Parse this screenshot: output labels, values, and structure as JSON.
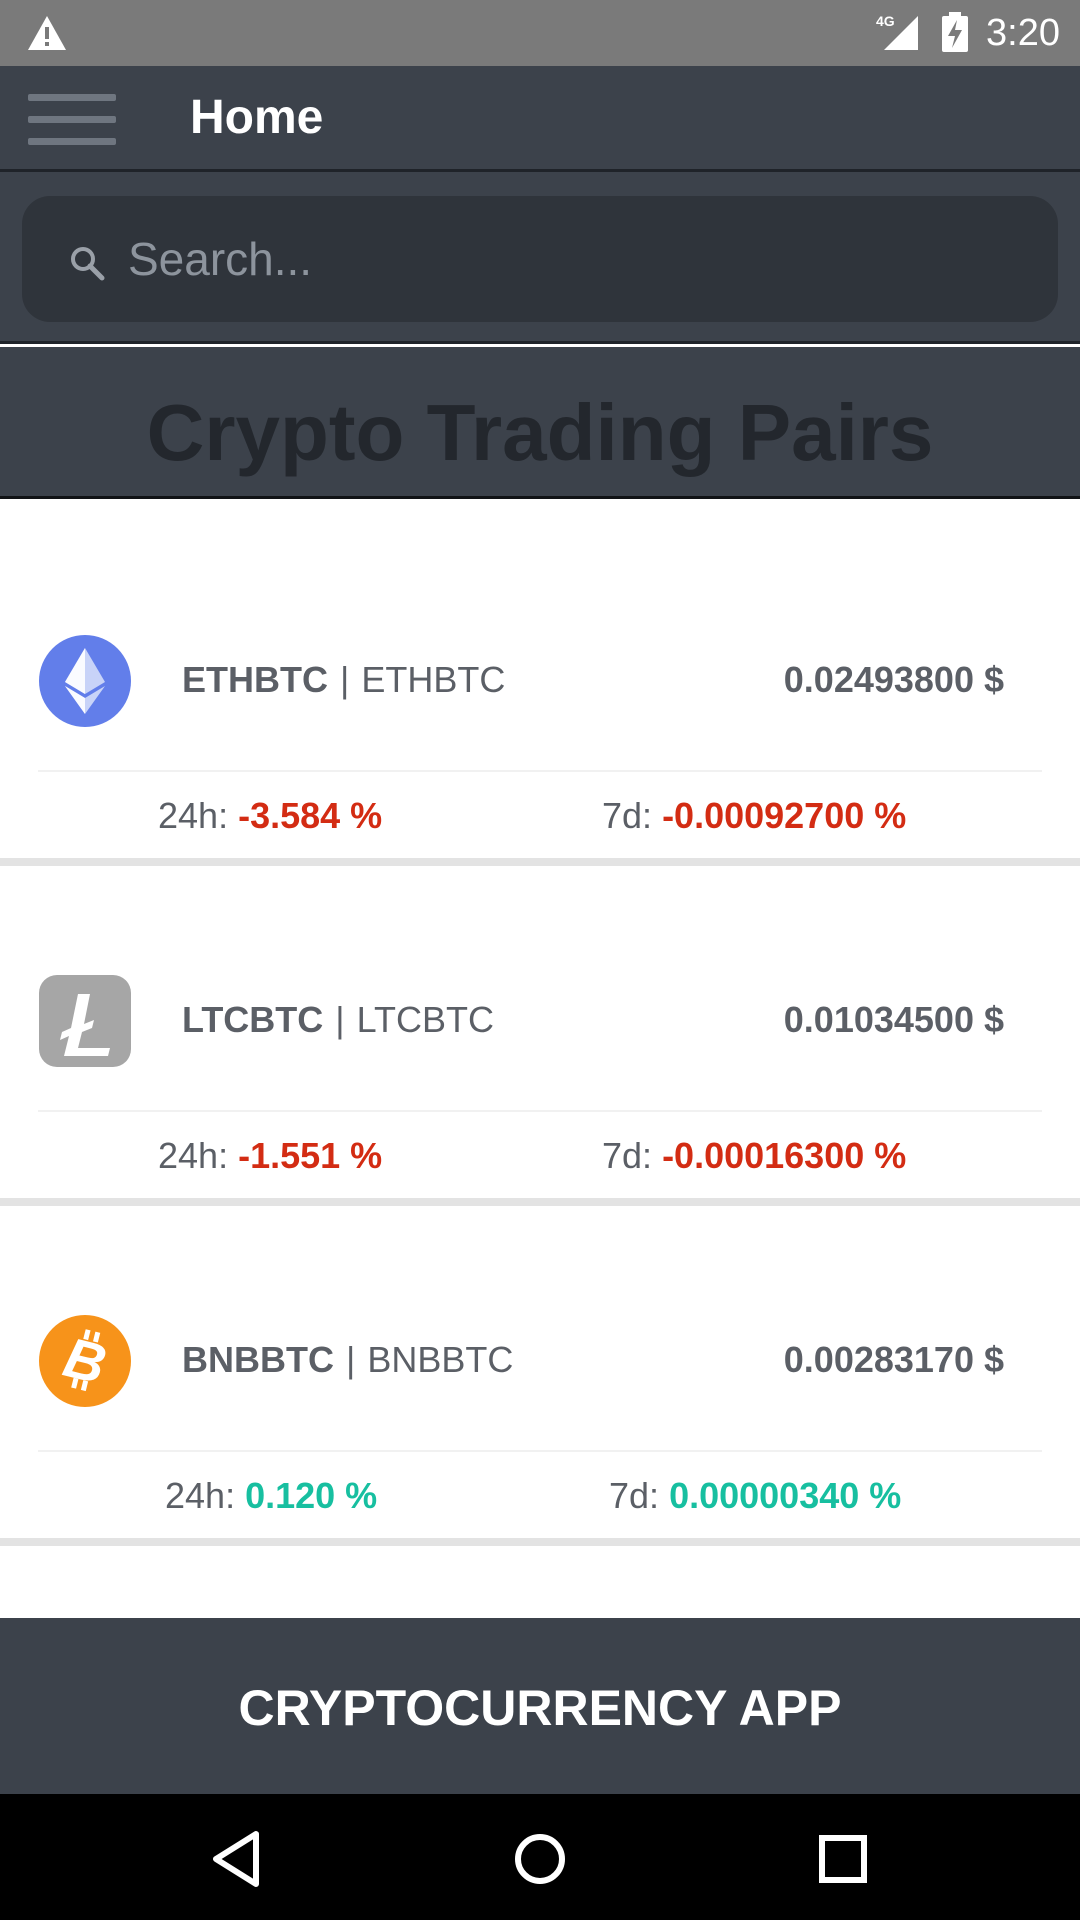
{
  "status_bar": {
    "time": "3:20",
    "network": "4G",
    "icons": [
      "warning-icon",
      "signal-icon",
      "battery-charging-icon"
    ]
  },
  "app_bar": {
    "title": "Home",
    "menu_icon": "hamburger-menu-icon"
  },
  "search": {
    "placeholder": "Search...",
    "value": "",
    "icon": "search-icon"
  },
  "section": {
    "title": "Crypto Trading Pairs"
  },
  "pairs": [
    {
      "symbol": "ETHBTC",
      "name": "ETHBTC",
      "separator": "|",
      "price": "0.02493800 $",
      "change_24h_label": "24h:",
      "change_24h": "-3.584 %",
      "change_7d_label": "7d:",
      "change_7d": "-0.00092700 %",
      "icon": "ethereum-icon",
      "trend": "negative"
    },
    {
      "symbol": "LTCBTC",
      "name": "LTCBTC",
      "separator": "|",
      "price": "0.01034500 $",
      "change_24h_label": "24h:",
      "change_24h": "-1.551 %",
      "change_7d_label": "7d:",
      "change_7d": "-0.00016300 %",
      "icon": "litecoin-icon",
      "trend": "negative"
    },
    {
      "symbol": "BNBBTC",
      "name": "BNBBTC",
      "separator": "|",
      "price": "0.00283170 $",
      "change_24h_label": "24h:",
      "change_24h": "0.120 %",
      "change_7d_label": "7d:",
      "change_7d": "0.00000340 %",
      "icon": "bitcoin-icon",
      "trend": "positive"
    }
  ],
  "footer": {
    "text": "CRYPTOCURRENCY APP"
  },
  "nav_bar": {
    "buttons": [
      "back-icon",
      "home-icon",
      "recents-icon"
    ]
  },
  "colors": {
    "app_bar": "#3c424b",
    "negative": "#d32c13",
    "positive": "#17bfa0",
    "ethereum": "#627eea",
    "litecoin": "#a6a6a6",
    "bitcoin": "#f7931a"
  }
}
